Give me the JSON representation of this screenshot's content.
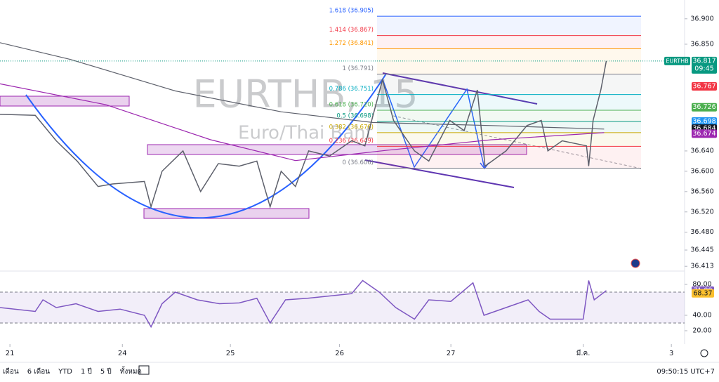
{
  "chart_data": [
    {
      "type": "line",
      "title": "EURTHB, 15",
      "subtitle": "Euro/Thai Baht",
      "xlim": [
        -0.09,
        6.12
      ],
      "xticks": [
        {
          "value": 0,
          "label": "21"
        },
        {
          "value": 1.02,
          "label": "24"
        },
        {
          "value": 2.0,
          "label": "25"
        },
        {
          "value": 2.99,
          "label": "26"
        },
        {
          "value": 4.0,
          "label": "27"
        },
        {
          "value": 5.2,
          "label": "มี.ค."
        },
        {
          "value": 6.0,
          "label": "3"
        }
      ],
      "ylim": [
        36.405,
        36.937
      ],
      "yticks": [
        {
          "value": 36.413,
          "label": "36.413"
        },
        {
          "value": 36.445,
          "label": "36.445"
        },
        {
          "value": 36.48,
          "label": "36.480"
        },
        {
          "value": 36.52,
          "label": "36.520"
        },
        {
          "value": 36.56,
          "label": "36.560"
        },
        {
          "value": 36.6,
          "label": "36.600"
        },
        {
          "value": 36.64,
          "label": "36.640"
        },
        {
          "value": 36.85,
          "label": "36.850"
        },
        {
          "value": 36.9,
          "label": "36.900"
        }
      ],
      "series": [
        {
          "name": "EURTHB",
          "color": "#5d606b",
          "x": [
            -0.09,
            0.23,
            0.42,
            0.61,
            0.8,
            0.93,
            1.22,
            1.28,
            1.38,
            1.57,
            1.73,
            1.89,
            2.08,
            2.24,
            2.36,
            2.46,
            2.59,
            2.71,
            2.9,
            3.1,
            3.22,
            3.38,
            3.48,
            3.67,
            3.8,
            3.99,
            4.12,
            4.24,
            4.31,
            4.5,
            4.69,
            4.82,
            4.88,
            5.01,
            5.23,
            5.25,
            5.29,
            5.36,
            5.41
          ],
          "values": [
            36.712,
            36.71,
            36.66,
            36.62,
            36.57,
            36.575,
            36.58,
            36.53,
            36.6,
            36.64,
            36.56,
            36.615,
            36.61,
            36.62,
            36.53,
            36.6,
            36.57,
            36.64,
            36.63,
            36.66,
            36.65,
            36.78,
            36.7,
            36.64,
            36.62,
            36.7,
            36.68,
            36.76,
            36.61,
            36.64,
            36.69,
            36.7,
            36.64,
            36.66,
            36.65,
            36.61,
            36.7,
            36.76,
            36.817
          ]
        },
        {
          "name": "MA",
          "color": "#5d606b",
          "x": [
            -0.09,
            0.55,
            1.5,
            2.46,
            3.29,
            4.37,
            5.39
          ],
          "values": [
            36.853,
            36.82,
            36.758,
            36.717,
            36.696,
            36.69,
            36.683
          ]
        },
        {
          "name": "MA2",
          "color": "#9c27b0",
          "x": [
            -0.09,
            0.87,
            1.82,
            2.59,
            3.41,
            4.37,
            5.39
          ],
          "values": [
            36.772,
            36.731,
            36.662,
            36.621,
            36.641,
            36.662,
            36.676
          ]
        }
      ],
      "fib_levels": [
        {
          "label": "1.618 (36.905)",
          "value": 36.905,
          "color": "#2962ff"
        },
        {
          "label": "1.414 (36.867)",
          "value": 36.867,
          "color": "#f23645"
        },
        {
          "label": "1.272 (36.841)",
          "value": 36.841,
          "color": "#ff9800"
        },
        {
          "label": "1 (36.791)",
          "value": 36.791,
          "color": "#787b86"
        },
        {
          "label": "0.786 (36.751)",
          "value": 36.751,
          "color": "#00acc1"
        },
        {
          "label": "0.618 (36.720)",
          "value": 36.72,
          "color": "#4caf50"
        },
        {
          "label": "0.5 (36.698)",
          "value": 36.698,
          "color": "#089981"
        },
        {
          "label": "0.382 (36.676)",
          "value": 36.676,
          "color": "#c9a800"
        },
        {
          "label": "0.236 (36.649)",
          "value": 36.649,
          "color": "#f23645"
        },
        {
          "label": "0 (36.606)",
          "value": 36.606,
          "color": "#787b86"
        }
      ],
      "symbol_tag": "EURTHB",
      "countdown": "09:45",
      "price_labels": [
        {
          "value": 36.817,
          "color": "#089981"
        },
        {
          "value": 36.767,
          "color": "#f23645"
        },
        {
          "value": 36.726,
          "color": "#4caf50"
        },
        {
          "value": 36.698,
          "color": "#2196f3"
        },
        {
          "value": 36.684,
          "color": "#131722"
        },
        {
          "value": 36.674,
          "color": "#9c27b0"
        }
      ]
    },
    {
      "type": "line",
      "xlim": [
        -0.09,
        6.12
      ],
      "ylim": [
        2.7,
        96.4
      ],
      "yticks": [
        {
          "value": 20,
          "label": "20.00"
        },
        {
          "value": 40,
          "label": "40.00"
        },
        {
          "value": 80,
          "label": "80.00"
        }
      ],
      "levels": [
        70,
        30
      ],
      "series": [
        {
          "name": "RSI",
          "color": "#7e57c2",
          "x": [
            -0.09,
            0.23,
            0.3,
            0.42,
            0.6,
            0.8,
            1.0,
            1.22,
            1.28,
            1.38,
            1.5,
            1.7,
            1.9,
            2.08,
            2.24,
            2.36,
            2.5,
            2.7,
            2.9,
            3.1,
            3.2,
            3.35,
            3.5,
            3.67,
            3.8,
            4.0,
            4.2,
            4.3,
            4.5,
            4.7,
            4.8,
            4.9,
            5.2,
            5.25,
            5.3,
            5.41
          ],
          "values": [
            50,
            45,
            60,
            50,
            55,
            45,
            48,
            40,
            25,
            55,
            70,
            60,
            55,
            56,
            62,
            30,
            60,
            62,
            65,
            68,
            85,
            70,
            50,
            35,
            60,
            58,
            82,
            40,
            50,
            60,
            45,
            35,
            35,
            85,
            60,
            72
          ]
        }
      ],
      "value_badges": [
        {
          "value": 71.99,
          "color": "#7e57c2"
        },
        {
          "value": 68.37,
          "color": "#fbc02d"
        }
      ]
    }
  ],
  "toolbar": {
    "ranges": [
      "เดือน",
      "6 เดือน",
      "YTD",
      "1 ปี",
      "5 ปี",
      "ทั้งหมด"
    ],
    "clock": "09:50:15 UTC+7"
  }
}
